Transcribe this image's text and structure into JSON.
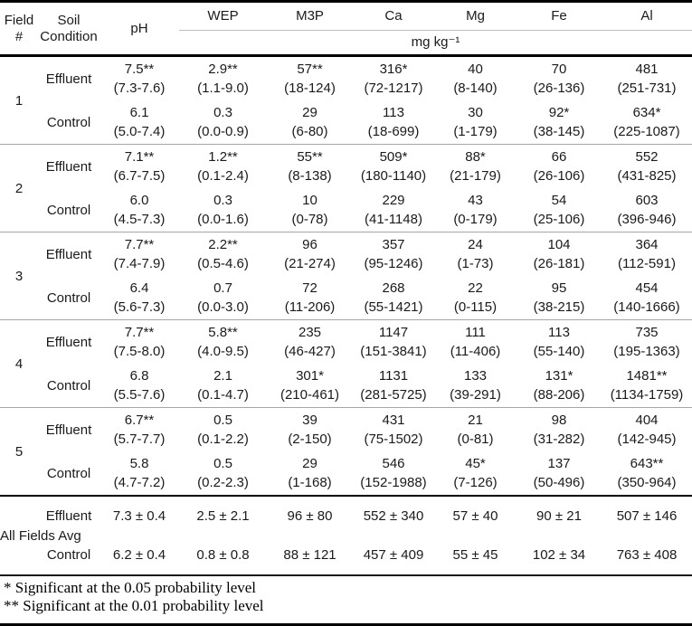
{
  "table": {
    "columns": [
      "Field #",
      "Soil Condition",
      "pH",
      "WEP",
      "M3P",
      "Ca",
      "Mg",
      "Fe",
      "Al"
    ],
    "units_label": "mg kg⁻¹",
    "groups": [
      {
        "field": "1",
        "rows": [
          {
            "condition": "Effluent",
            "cells": [
              {
                "mean": "7.5**",
                "range": "(7.3-7.6)"
              },
              {
                "mean": "2.9**",
                "range": "(1.1-9.0)"
              },
              {
                "mean": "57**",
                "range": "(18-124)"
              },
              {
                "mean": "316*",
                "range": "(72-1217)"
              },
              {
                "mean": "40",
                "range": "(8-140)"
              },
              {
                "mean": "70",
                "range": "(26-136)"
              },
              {
                "mean": "481",
                "range": "(251-731)"
              }
            ]
          },
          {
            "condition": "Control",
            "cells": [
              {
                "mean": "6.1",
                "range": "(5.0-7.4)"
              },
              {
                "mean": "0.3",
                "range": "(0.0-0.9)"
              },
              {
                "mean": "29",
                "range": "(6-80)"
              },
              {
                "mean": "113",
                "range": "(18-699)"
              },
              {
                "mean": "30",
                "range": "(1-179)"
              },
              {
                "mean": "92*",
                "range": "(38-145)"
              },
              {
                "mean": "634*",
                "range": "(225-1087)"
              }
            ]
          }
        ]
      },
      {
        "field": "2",
        "rows": [
          {
            "condition": "Effluent",
            "cells": [
              {
                "mean": "7.1**",
                "range": "(6.7-7.5)"
              },
              {
                "mean": "1.2**",
                "range": "(0.1-2.4)"
              },
              {
                "mean": "55**",
                "range": "(8-138)"
              },
              {
                "mean": "509*",
                "range": "(180-1140)"
              },
              {
                "mean": "88*",
                "range": "(21-179)"
              },
              {
                "mean": "66",
                "range": "(26-106)"
              },
              {
                "mean": "552",
                "range": "(431-825)"
              }
            ]
          },
          {
            "condition": "Control",
            "cells": [
              {
                "mean": "6.0",
                "range": "(4.5-7.3)"
              },
              {
                "mean": "0.3",
                "range": "(0.0-1.6)"
              },
              {
                "mean": "10",
                "range": "(0-78)"
              },
              {
                "mean": "229",
                "range": "(41-1148)"
              },
              {
                "mean": "43",
                "range": "(0-179)"
              },
              {
                "mean": "54",
                "range": "(25-106)"
              },
              {
                "mean": "603",
                "range": "(396-946)"
              }
            ]
          }
        ]
      },
      {
        "field": "3",
        "rows": [
          {
            "condition": "Effluent",
            "cells": [
              {
                "mean": "7.7**",
                "range": "(7.4-7.9)"
              },
              {
                "mean": "2.2**",
                "range": "(0.5-4.6)"
              },
              {
                "mean": "96",
                "range": "(21-274)"
              },
              {
                "mean": "357",
                "range": "(95-1246)"
              },
              {
                "mean": "24",
                "range": "(1-73)"
              },
              {
                "mean": "104",
                "range": "(26-181)"
              },
              {
                "mean": "364",
                "range": "(112-591)"
              }
            ]
          },
          {
            "condition": "Control",
            "cells": [
              {
                "mean": "6.4",
                "range": "(5.6-7.3)"
              },
              {
                "mean": "0.7",
                "range": "(0.0-3.0)"
              },
              {
                "mean": "72",
                "range": "(11-206)"
              },
              {
                "mean": "268",
                "range": "(55-1421)"
              },
              {
                "mean": "22",
                "range": "(0-115)"
              },
              {
                "mean": "95",
                "range": "(38-215)"
              },
              {
                "mean": "454",
                "range": "(140-1666)"
              }
            ]
          }
        ]
      },
      {
        "field": "4",
        "rows": [
          {
            "condition": "Effluent",
            "cells": [
              {
                "mean": "7.7**",
                "range": "(7.5-8.0)"
              },
              {
                "mean": "5.8**",
                "range": "(4.0-9.5)"
              },
              {
                "mean": "235",
                "range": "(46-427)"
              },
              {
                "mean": "1147",
                "range": "(151-3841)"
              },
              {
                "mean": "111",
                "range": "(11-406)"
              },
              {
                "mean": "113",
                "range": "(55-140)"
              },
              {
                "mean": "735",
                "range": "(195-1363)"
              }
            ]
          },
          {
            "condition": "Control",
            "cells": [
              {
                "mean": "6.8",
                "range": "(5.5-7.6)"
              },
              {
                "mean": "2.1",
                "range": "(0.1-4.7)"
              },
              {
                "mean": "301*",
                "range": "(210-461)"
              },
              {
                "mean": "1131",
                "range": "(281-5725)"
              },
              {
                "mean": "133",
                "range": "(39-291)"
              },
              {
                "mean": "131*",
                "range": "(88-206)"
              },
              {
                "mean": "1481**",
                "range": "(1134-1759)"
              }
            ]
          }
        ]
      },
      {
        "field": "5",
        "rows": [
          {
            "condition": "Effluent",
            "cells": [
              {
                "mean": "6.7**",
                "range": "(5.7-7.7)"
              },
              {
                "mean": "0.5",
                "range": "(0.1-2.2)"
              },
              {
                "mean": "39",
                "range": "(2-150)"
              },
              {
                "mean": "431",
                "range": "(75-1502)"
              },
              {
                "mean": "21",
                "range": "(0-81)"
              },
              {
                "mean": "98",
                "range": "(31-282)"
              },
              {
                "mean": "404",
                "range": "(142-945)"
              }
            ]
          },
          {
            "condition": "Control",
            "cells": [
              {
                "mean": "5.8",
                "range": "(4.7-7.2)"
              },
              {
                "mean": "0.5",
                "range": "(0.2-2.3)"
              },
              {
                "mean": "29",
                "range": "(1-168)"
              },
              {
                "mean": "546",
                "range": "(152-1988)"
              },
              {
                "mean": "45*",
                "range": "(7-126)"
              },
              {
                "mean": "137",
                "range": "(50-496)"
              },
              {
                "mean": "643**",
                "range": "(350-964)"
              }
            ]
          }
        ]
      }
    ],
    "summary": {
      "label": "All Fields Avg",
      "rows": [
        {
          "condition": "Effluent",
          "cells": [
            "7.3 ± 0.4",
            "2.5 ± 2.1",
            "96 ± 80",
            "552 ± 340",
            "57 ± 40",
            "90 ± 21",
            "507 ± 146"
          ]
        },
        {
          "condition": "Control",
          "cells": [
            "6.2 ± 0.4",
            "0.8 ± 0.8",
            "88 ± 121",
            "457 ± 409",
            "55 ± 45",
            "102 ± 34",
            "763 ± 408"
          ]
        }
      ]
    },
    "footnotes": [
      "* Significant at the 0.05 probability level",
      "** Significant at the 0.01 probability level"
    ]
  }
}
